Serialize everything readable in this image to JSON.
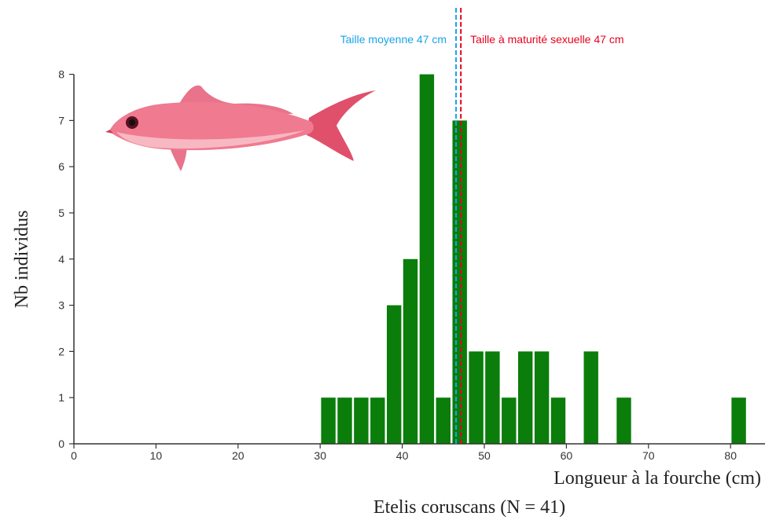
{
  "chart_data": {
    "type": "bar",
    "title": "",
    "caption": "Etelis coruscans (N = 41)",
    "xlabel": "Longueur à la fourche (cm)",
    "ylabel": "Nb individus",
    "xlim": [
      0,
      85
    ],
    "ylim": [
      0,
      8
    ],
    "xticks": [
      0,
      10,
      20,
      30,
      40,
      50,
      60,
      70,
      80
    ],
    "yticks": [
      0,
      1,
      2,
      3,
      4,
      5,
      6,
      7,
      8
    ],
    "bin_width": 2,
    "bars": [
      {
        "x": 31,
        "y": 1
      },
      {
        "x": 33,
        "y": 1
      },
      {
        "x": 35,
        "y": 1
      },
      {
        "x": 37,
        "y": 1
      },
      {
        "x": 39,
        "y": 3
      },
      {
        "x": 41,
        "y": 4
      },
      {
        "x": 43,
        "y": 8
      },
      {
        "x": 45,
        "y": 1
      },
      {
        "x": 47,
        "y": 7
      },
      {
        "x": 49,
        "y": 2
      },
      {
        "x": 51,
        "y": 2
      },
      {
        "x": 53,
        "y": 1
      },
      {
        "x": 55,
        "y": 2
      },
      {
        "x": 57,
        "y": 2
      },
      {
        "x": 59,
        "y": 1
      },
      {
        "x": 63,
        "y": 2
      },
      {
        "x": 67,
        "y": 1
      },
      {
        "x": 81,
        "y": 1
      }
    ],
    "reference_lines": [
      {
        "label": "Taille moyenne 47 cm",
        "value": 46.7,
        "color": "#1aa3e8"
      },
      {
        "label": "Taille à maturité sexuelle 47 cm",
        "value": 47.0,
        "color": "#e8001c"
      }
    ],
    "bar_color": "#0a7d0a",
    "grid": false,
    "illustration": "red-snapper-fish-illustration"
  }
}
